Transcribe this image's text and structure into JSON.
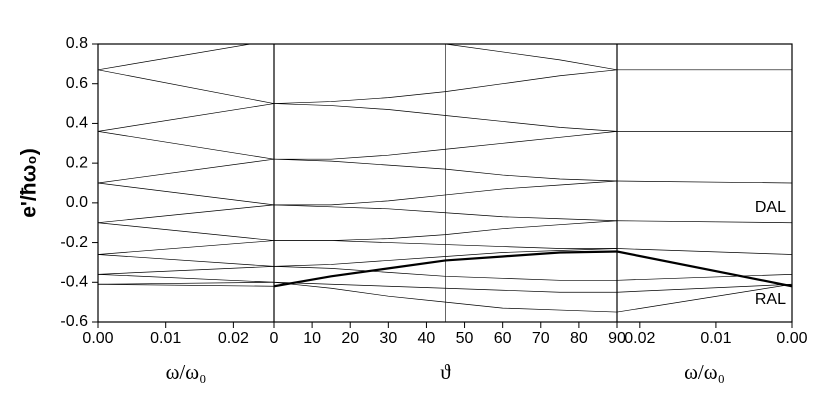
{
  "chart_data": [
    {
      "type": "line",
      "ylabel": "e'/ħω₀)",
      "xlabel": "ω/ω₀",
      "color": "#000000",
      "ylim": [
        -0.6,
        0.8
      ],
      "yticks": [
        -0.6,
        -0.4,
        -0.2,
        {
          "value": 0,
          "label": "0.0"
        },
        0.2,
        0.4,
        0.6,
        0.8
      ],
      "xlim": [
        0,
        0.026
      ],
      "xticks": [
        {
          "value": 0,
          "label": "0.00"
        },
        {
          "value": 0.01,
          "label": "0.01"
        },
        {
          "value": 0.02,
          "label": "0.02"
        }
      ],
      "x": [
        0,
        0.026
      ],
      "series": [
        {
          "values": [
            0.67,
            0.82
          ]
        },
        {
          "values": [
            0.67,
            0.5
          ]
        },
        {
          "values": [
            0.36,
            0.5
          ]
        },
        {
          "values": [
            0.36,
            0.22
          ]
        },
        {
          "values": [
            0.1,
            0.22
          ]
        },
        {
          "values": [
            0.1,
            -0.01
          ]
        },
        {
          "values": [
            -0.1,
            -0.01
          ]
        },
        {
          "values": [
            -0.1,
            -0.19
          ]
        },
        {
          "values": [
            -0.26,
            -0.19
          ]
        },
        {
          "values": [
            -0.26,
            -0.32
          ]
        },
        {
          "values": [
            -0.36,
            -0.32
          ]
        },
        {
          "values": [
            -0.36,
            -0.4
          ]
        },
        {
          "values": [
            -0.41,
            -0.4
          ]
        },
        {
          "values": [
            -0.41,
            -0.42
          ]
        }
      ]
    },
    {
      "type": "line",
      "xlabel": "ϑ",
      "color": "#000000",
      "xlim": [
        0,
        90
      ],
      "xticks": [
        0,
        10,
        20,
        30,
        40,
        50,
        60,
        70,
        80,
        90
      ],
      "vline": 45,
      "x": [
        0,
        15,
        30,
        45,
        60,
        75,
        90
      ],
      "series": [
        {
          "values": [
            0.82,
            0.82,
            0.81,
            0.8,
            0.76,
            0.72,
            0.67
          ]
        },
        {
          "values": [
            0.5,
            0.51,
            0.53,
            0.56,
            0.6,
            0.64,
            0.67
          ]
        },
        {
          "values": [
            0.5,
            0.49,
            0.47,
            0.44,
            0.41,
            0.38,
            0.36
          ]
        },
        {
          "values": [
            0.22,
            0.22,
            0.24,
            0.27,
            0.3,
            0.33,
            0.36
          ]
        },
        {
          "values": [
            0.22,
            0.21,
            0.19,
            0.17,
            0.14,
            0.12,
            0.11
          ]
        },
        {
          "values": [
            -0.01,
            -0.01,
            0.01,
            0.04,
            0.07,
            0.09,
            0.11
          ]
        },
        {
          "values": [
            -0.01,
            -0.02,
            -0.03,
            -0.05,
            -0.07,
            -0.08,
            -0.09
          ]
        },
        {
          "values": [
            -0.19,
            -0.19,
            -0.18,
            -0.16,
            -0.13,
            -0.11,
            -0.09
          ]
        },
        {
          "values": [
            -0.19,
            -0.19,
            -0.2,
            -0.21,
            -0.22,
            -0.23,
            -0.23
          ]
        },
        {
          "values": [
            -0.32,
            -0.31,
            -0.29,
            -0.27,
            -0.25,
            -0.24,
            -0.23
          ]
        },
        {
          "values": [
            -0.32,
            -0.33,
            -0.35,
            -0.37,
            -0.38,
            -0.39,
            -0.39
          ]
        },
        {
          "values": [
            -0.4,
            -0.41,
            -0.42,
            -0.43,
            -0.44,
            -0.45,
            -0.45
          ]
        },
        {
          "values": [
            -0.4,
            -0.43,
            -0.47,
            -0.5,
            -0.53,
            -0.54,
            -0.55
          ]
        },
        {
          "values": [
            -0.42,
            -0.37,
            -0.33,
            -0.29,
            -0.27,
            -0.25,
            -0.245
          ],
          "bold": true
        }
      ]
    },
    {
      "type": "line",
      "xlabel": "ω/ω₀",
      "color": "#000000",
      "xlim": [
        0.023,
        0
      ],
      "xticks": [
        {
          "value": 0.02,
          "label": "0.02"
        },
        {
          "value": 0.01,
          "label": "0.01"
        },
        {
          "value": 0,
          "label": "0.00"
        }
      ],
      "annotations": [
        "DAL",
        "RAL"
      ],
      "x": [
        0.023,
        0
      ],
      "series": [
        {
          "values": [
            0.67,
            0.67
          ]
        },
        {
          "values": [
            0.36,
            0.36
          ]
        },
        {
          "values": [
            0.11,
            0.1
          ]
        },
        {
          "values": [
            -0.09,
            -0.1
          ]
        },
        {
          "values": [
            -0.23,
            -0.26
          ]
        },
        {
          "values": [
            -0.39,
            -0.36
          ]
        },
        {
          "values": [
            -0.45,
            -0.41
          ]
        },
        {
          "values": [
            -0.55,
            -0.41
          ]
        },
        {
          "values": [
            -0.245,
            -0.42
          ],
          "bold": true
        }
      ]
    }
  ]
}
